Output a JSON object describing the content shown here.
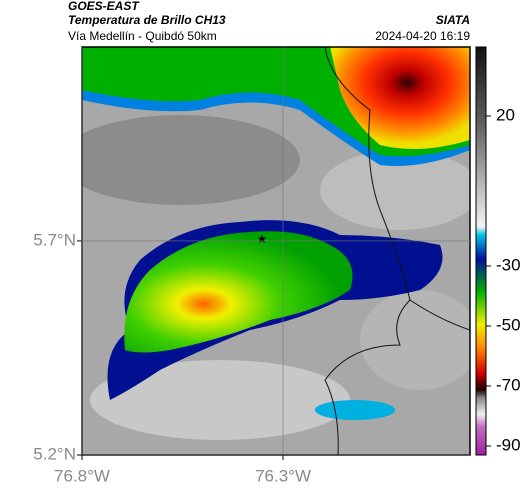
{
  "header": {
    "source": "GOES-EAST",
    "title": "Temperatura de Brillo CH13",
    "subtitle": "Vía Medellín - Quibdó 50km",
    "agency": "SIATA",
    "timestamp": "2024-04-20 16:19"
  },
  "map": {
    "lat_lim": [
      5.2,
      6.153
    ],
    "lon_lim": [
      -76.8,
      -75.835
    ],
    "lat_ticks": [
      {
        "value": 5.2,
        "label": "5.2°N"
      },
      {
        "value": 5.7,
        "label": "5.7°N"
      }
    ],
    "lon_ticks": [
      {
        "value": -76.8,
        "label": "76.8°W"
      },
      {
        "value": -76.3,
        "label": "76.3°W"
      }
    ],
    "grid": true
  },
  "colorbar": {
    "clim": [
      -93,
      43
    ],
    "ticks": [
      20,
      -30,
      -50,
      -70,
      -90
    ]
  }
}
